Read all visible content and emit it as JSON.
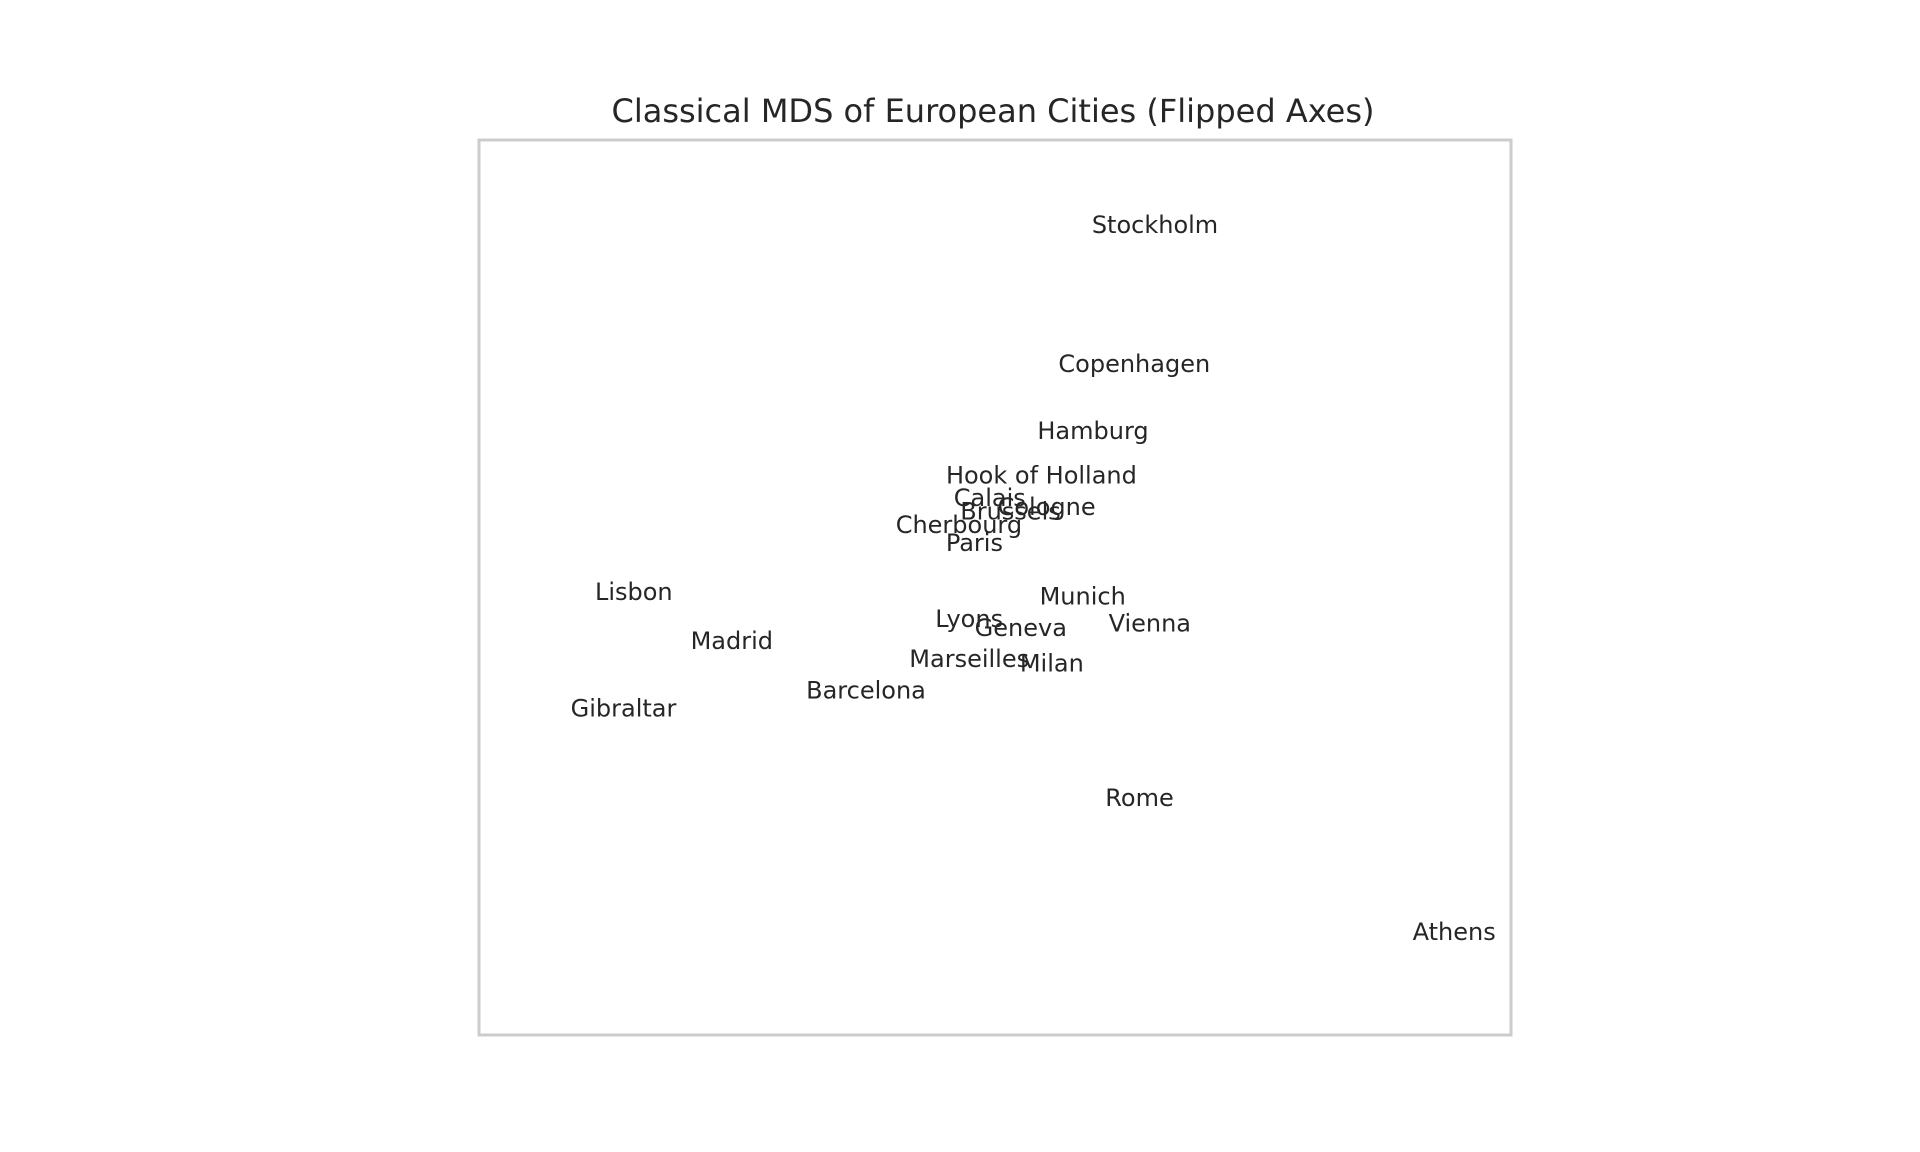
{
  "chart_data": {
    "type": "scatter",
    "title": "Classical MDS of European Cities (Flipped Axes)",
    "xlabel": "",
    "ylabel": "",
    "xlim": [
      -1,
      1
    ],
    "ylim": [
      -1,
      1
    ],
    "grid": false,
    "axes_ticks": false,
    "points": [
      {
        "label": "Stockholm",
        "x": 0.31,
        "y": 0.81
      },
      {
        "label": "Copenhagen",
        "x": 0.27,
        "y": 0.5
      },
      {
        "label": "Hamburg",
        "x": 0.19,
        "y": 0.35
      },
      {
        "label": "Hook of Holland",
        "x": 0.09,
        "y": 0.25
      },
      {
        "label": "Calais",
        "x": -0.01,
        "y": 0.2
      },
      {
        "label": "Cologne",
        "x": 0.1,
        "y": 0.18
      },
      {
        "label": "Brussels",
        "x": 0.03,
        "y": 0.17
      },
      {
        "label": "Cherbourg",
        "x": -0.07,
        "y": 0.14
      },
      {
        "label": "Paris",
        "x": -0.04,
        "y": 0.1
      },
      {
        "label": "Lisbon",
        "x": -0.7,
        "y": -0.01
      },
      {
        "label": "Munich",
        "x": 0.17,
        "y": -0.02
      },
      {
        "label": "Lyons",
        "x": -0.05,
        "y": -0.07
      },
      {
        "label": "Vienna",
        "x": 0.3,
        "y": -0.08
      },
      {
        "label": "Geneva",
        "x": 0.05,
        "y": -0.09
      },
      {
        "label": "Madrid",
        "x": -0.51,
        "y": -0.12
      },
      {
        "label": "Marseilles",
        "x": -0.05,
        "y": -0.16
      },
      {
        "label": "Milan",
        "x": 0.11,
        "y": -0.17
      },
      {
        "label": "Barcelona",
        "x": -0.25,
        "y": -0.23
      },
      {
        "label": "Gibraltar",
        "x": -0.72,
        "y": -0.27
      },
      {
        "label": "Rome",
        "x": 0.28,
        "y": -0.47
      },
      {
        "label": "Athens",
        "x": 0.89,
        "y": -0.77
      }
    ]
  }
}
